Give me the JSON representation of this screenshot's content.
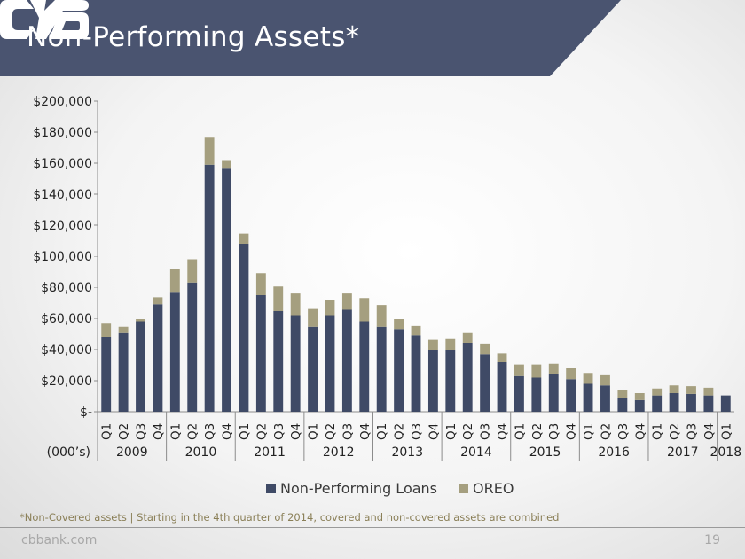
{
  "slide": {
    "title": "Non-Performing Assets*",
    "footnote": "*Non-Covered assets | Starting in the 4th quarter of 2014, covered and non-covered assets are combined",
    "website": "cbbank.com",
    "page_number": "19"
  },
  "colors": {
    "banner": "#4a5470",
    "npl": "#3f4a66",
    "oreo": "#a59f7f"
  },
  "chart_data": {
    "type": "bar",
    "stacked": true,
    "units_label": "(000’s)",
    "y_ticks": [
      "$200,000",
      "$180,000",
      "$160,000",
      "$140,000",
      "$120,000",
      "$100,000",
      "$80,000",
      "$60,000",
      "$40,000",
      "$20,000",
      "$-"
    ],
    "ylim": [
      0,
      200000
    ],
    "categories": [
      "Q1",
      "Q2",
      "Q3",
      "Q4",
      "Q1",
      "Q2",
      "Q3",
      "Q4",
      "Q1",
      "Q2",
      "Q3",
      "Q4",
      "Q1",
      "Q2",
      "Q3",
      "Q4",
      "Q1",
      "Q2",
      "Q3",
      "Q4",
      "Q1",
      "Q2",
      "Q3",
      "Q4",
      "Q1",
      "Q2",
      "Q3",
      "Q4",
      "Q1",
      "Q2",
      "Q3",
      "Q4",
      "Q1",
      "Q2",
      "Q3",
      "Q4",
      "Q1"
    ],
    "years": [
      {
        "label": "2009",
        "quarters": 4
      },
      {
        "label": "2010",
        "quarters": 4
      },
      {
        "label": "2011",
        "quarters": 4
      },
      {
        "label": "2012",
        "quarters": 4
      },
      {
        "label": "2013",
        "quarters": 4
      },
      {
        "label": "2014",
        "quarters": 4
      },
      {
        "label": "2015",
        "quarters": 4
      },
      {
        "label": "2016",
        "quarters": 4
      },
      {
        "label": "2017",
        "quarters": 4
      },
      {
        "label": "2018",
        "quarters": 1
      }
    ],
    "series": [
      {
        "name": "Non-Performing Loans",
        "values": [
          48000,
          51000,
          58000,
          69000,
          77000,
          83000,
          159000,
          157000,
          108000,
          75000,
          65000,
          62000,
          55000,
          62000,
          66000,
          58000,
          55000,
          53000,
          49000,
          40000,
          40000,
          44000,
          37000,
          32000,
          23000,
          22000,
          24000,
          21000,
          18000,
          17000,
          9000,
          7500,
          10500,
          12000,
          11500,
          10500,
          10500
        ]
      },
      {
        "name": "OREO",
        "values": [
          9000,
          4000,
          1500,
          4500,
          15000,
          15000,
          18000,
          5000,
          6500,
          14000,
          16000,
          14500,
          11500,
          10000,
          10500,
          15000,
          13500,
          7000,
          6500,
          6500,
          7000,
          7000,
          6500,
          5500,
          7500,
          8500,
          7000,
          7000,
          7000,
          6500,
          5000,
          4500,
          4500,
          5000,
          5000,
          5000,
          0
        ]
      }
    ]
  }
}
